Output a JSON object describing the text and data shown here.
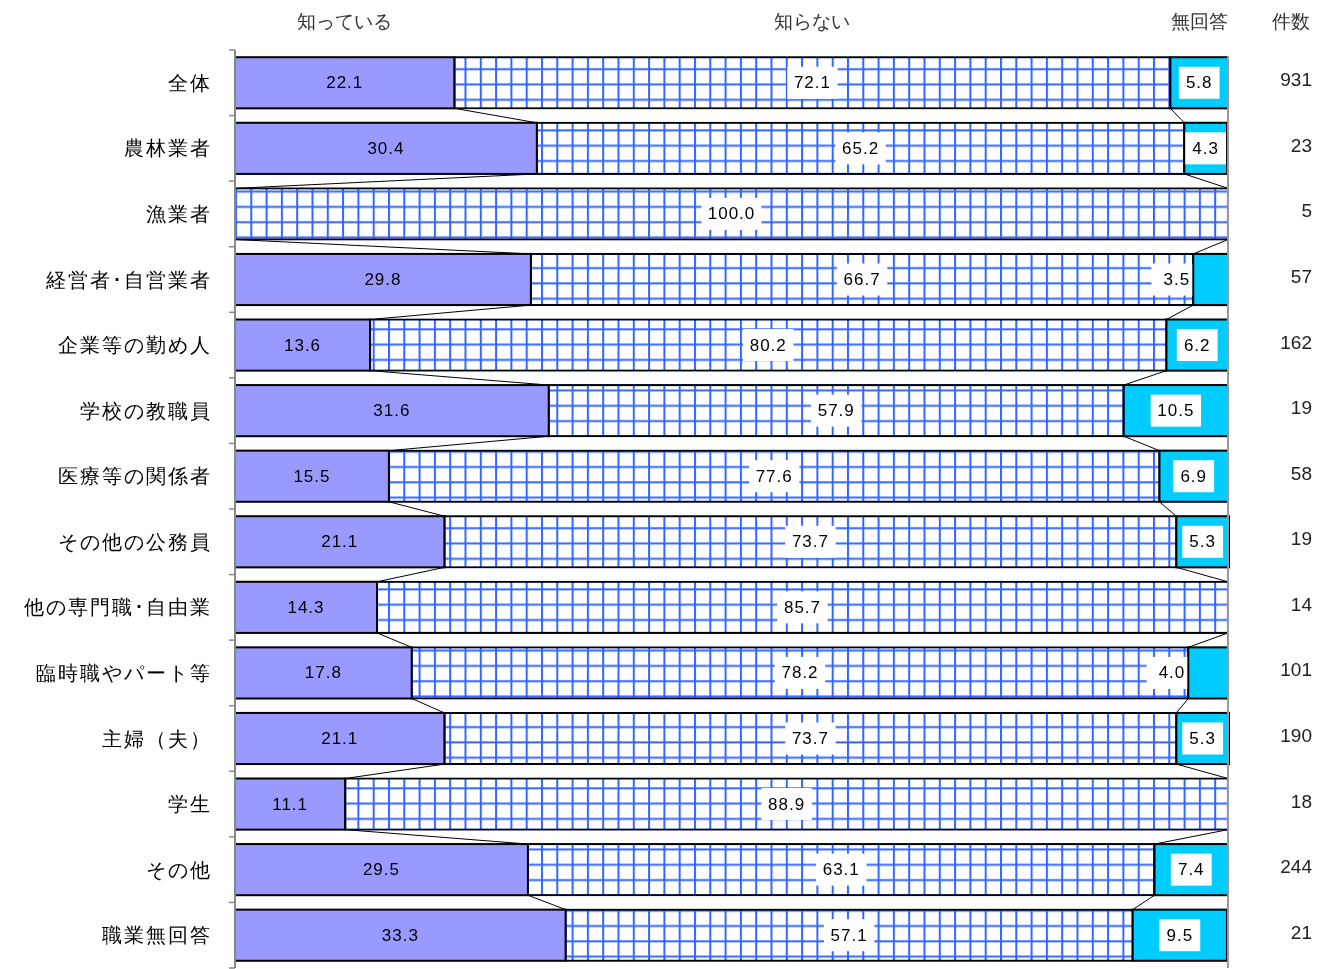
{
  "chart_data": {
    "type": "bar",
    "orientation": "horizontal",
    "stacked": true,
    "categories": [
      "全体",
      "農林業者",
      "漁業者",
      "経営者･自営業者",
      "企業等の勤め人",
      "学校の教職員",
      "医療等の関係者",
      "その他の公務員",
      "他の専門職･自由業",
      "臨時職やパート等",
      "主婦（夫）",
      "学生",
      "その他",
      "職業無回答"
    ],
    "y2_categories": [
      "931",
      "23",
      "5",
      "57",
      "162",
      "19",
      "58",
      "19",
      "14",
      "101",
      "190",
      "18",
      "244",
      "21"
    ],
    "y2label": "件数",
    "series": [
      {
        "name": "知っている",
        "color": "#9999ff",
        "values": [
          22.1,
          30.4,
          0,
          29.8,
          13.6,
          31.6,
          15.5,
          21.1,
          14.3,
          17.8,
          21.1,
          11.1,
          29.5,
          33.3
        ],
        "value_labels": [
          "22.1",
          "30.4",
          null,
          "29.8",
          "13.6",
          "31.6",
          "15.5",
          "21.1",
          "14.3",
          "17.8",
          "21.1",
          "11.1",
          "29.5",
          "33.3"
        ]
      },
      {
        "name": "知らない",
        "color": "#3366ff",
        "values": [
          72.1,
          65.2,
          100.0,
          66.7,
          80.2,
          57.9,
          77.6,
          73.7,
          85.7,
          78.2,
          73.7,
          88.9,
          63.1,
          57.1
        ],
        "value_labels": [
          "72.1",
          "65.2",
          "100.0",
          "66.7",
          "80.2",
          "57.9",
          "77.6",
          "73.7",
          "85.7",
          "78.2",
          "73.7",
          "88.9",
          "63.1",
          "57.1"
        ]
      },
      {
        "name": "無回答",
        "color": "#00ccff",
        "values": [
          5.8,
          4.3,
          0,
          3.5,
          6.2,
          10.5,
          6.9,
          5.3,
          0,
          4.0,
          5.3,
          0,
          7.4,
          9.5
        ],
        "value_labels": [
          "5.8",
          "4.3",
          null,
          "3.5",
          "6.2",
          "10.5",
          "6.9",
          "5.3",
          null,
          "4.0",
          "5.3",
          null,
          "7.4",
          "9.5"
        ]
      }
    ],
    "xlim": [
      0,
      100
    ],
    "tick_labels": "y",
    "legend": "top"
  }
}
